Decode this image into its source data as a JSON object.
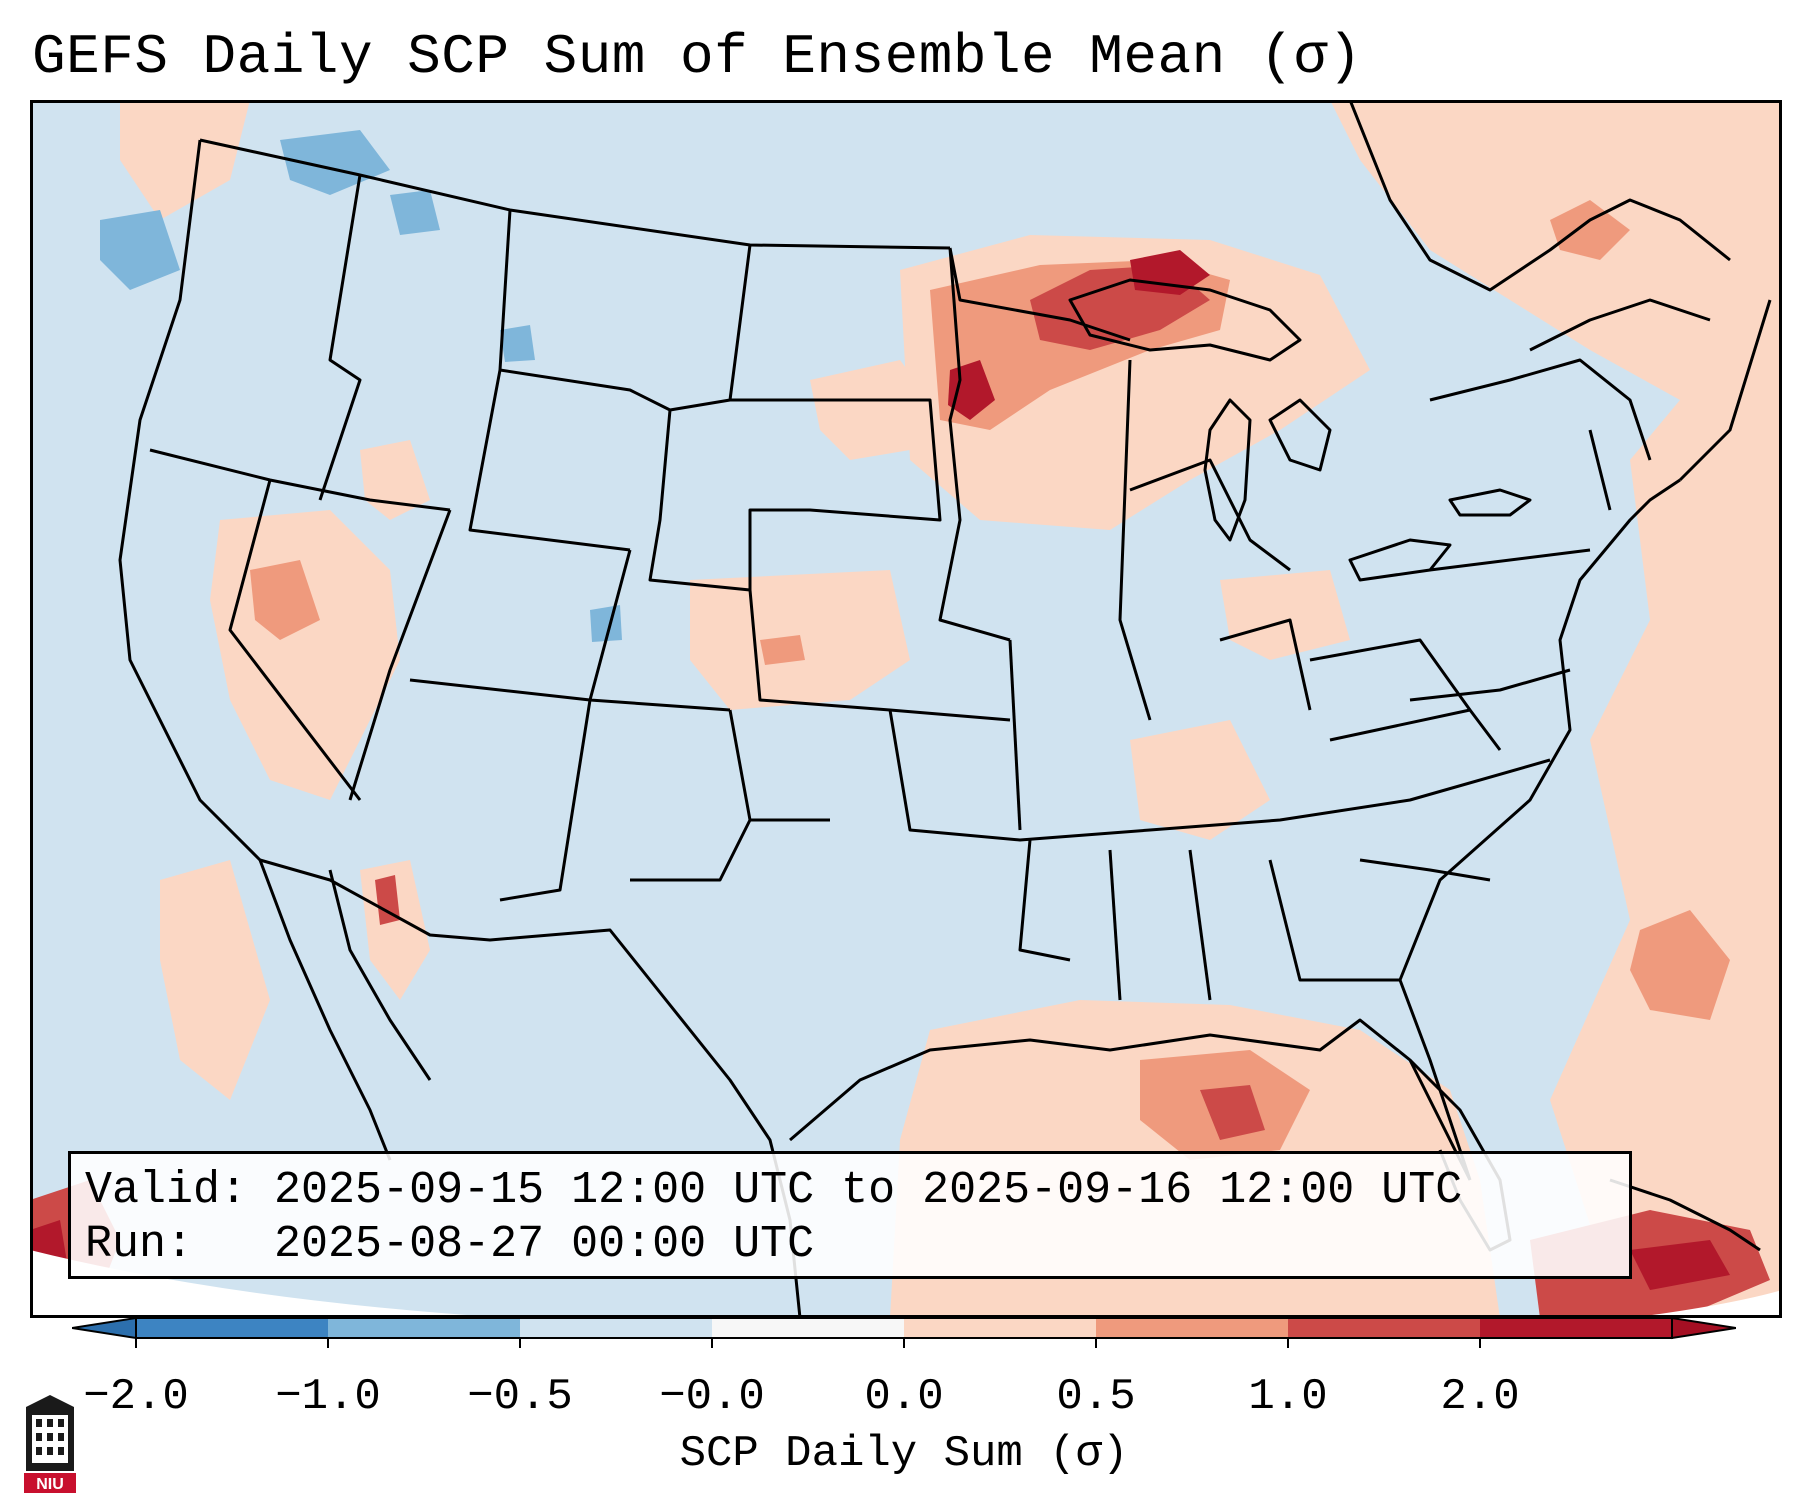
{
  "title": "GEFS Daily SCP Sum of Ensemble Mean (σ)",
  "valid_box": {
    "valid_label": "Valid:",
    "valid_value": "2025-09-15 12:00 UTC to 2025-09-16 12:00 UTC",
    "run_label": "Run:",
    "run_value": "2025-08-27 00:00 UTC"
  },
  "colorbar": {
    "label": "SCP Daily Sum (σ)",
    "ticks": [
      "−2.0",
      "−1.0",
      "−0.5",
      "−0.0",
      "0.0",
      "0.5",
      "1.0",
      "2.0"
    ],
    "segment_colors": [
      "#3d84c2",
      "#7fb6da",
      "#d0e3f0",
      "#f7f7f7",
      "#fbd7c4",
      "#ef9a7d",
      "#cc4a48",
      "#b2182b"
    ],
    "extend_low_color": "#2c6fad",
    "extend_high_color": "#a50f23"
  },
  "map": {
    "background_color": "#d0e3f0",
    "regions_above_normal": [
      "Upper Midwest / Lake Superior",
      "Gulf of Mexico",
      "Western Atlantic",
      "Great Basin",
      "Central Plains",
      "Caribbean"
    ],
    "strongest_anomaly_region": "Lake Superior / northern Minnesota",
    "strongest_anomaly_color": "#b2182b"
  },
  "logo": {
    "text": "NIU"
  }
}
